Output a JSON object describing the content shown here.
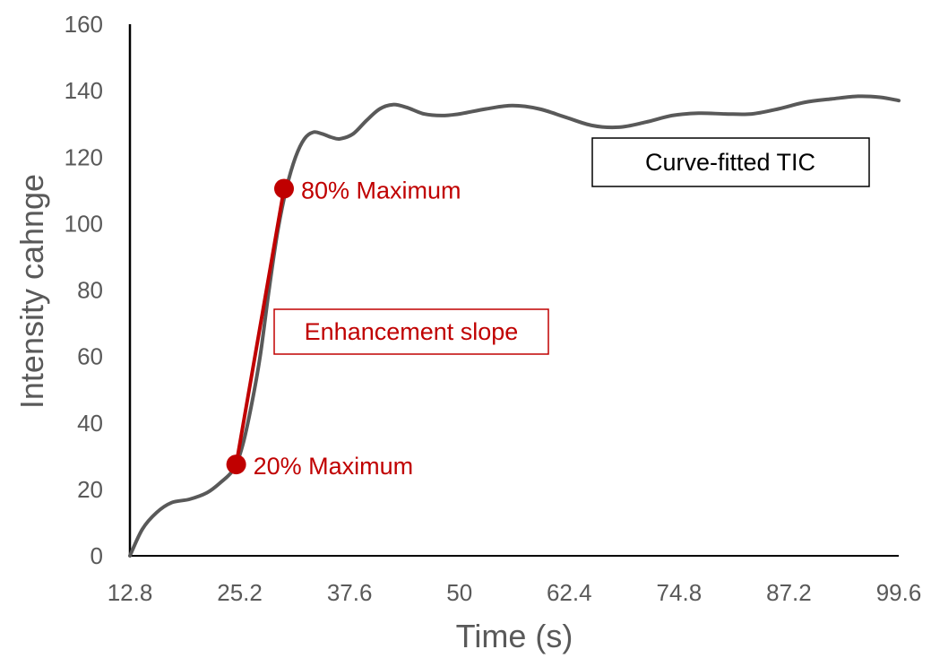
{
  "chart_data": {
    "type": "line",
    "xlabel": "Time (s)",
    "ylabel": "Intensity cahnge",
    "ylim": [
      0,
      160
    ],
    "yticks": [
      0,
      20,
      40,
      60,
      80,
      100,
      120,
      140,
      160
    ],
    "xlim": [
      12.8,
      99.6
    ],
    "xticks": [
      "12.8",
      "25.2",
      "37.6",
      "50",
      "62.4",
      "74.8",
      "87.2",
      "99.6"
    ],
    "grid": false,
    "series": [
      {
        "name": "Curve-fitted TIC",
        "color": "#595959",
        "x": [
          12.8,
          14.2,
          15.8,
          17.5,
          19.5,
          21.5,
          23.0,
          24.5,
          25.5,
          26.5,
          27.5,
          28.5,
          29.5,
          30.5,
          31.5,
          32.5,
          33.5,
          34.5,
          35.5,
          36.5,
          38.0,
          39.5,
          41.0,
          42.5,
          44.0,
          46.0,
          48.0,
          50.0,
          53.0,
          56.0,
          59.0,
          62.0,
          65.0,
          68.0,
          71.0,
          74.0,
          77.0,
          80.0,
          83.0,
          86.0,
          89.0,
          92.0,
          95.0,
          97.5,
          99.6
        ],
        "y": [
          0,
          8,
          13,
          16,
          17,
          19,
          22,
          26,
          33,
          45,
          60,
          80,
          98,
          111,
          120,
          125.5,
          127.5,
          127,
          126,
          125.5,
          127,
          131,
          134.5,
          135.8,
          135,
          133,
          132.5,
          133,
          134.5,
          135.5,
          134.5,
          132,
          129.5,
          129,
          130.5,
          132.5,
          133.2,
          133,
          133,
          134.5,
          136.5,
          137.5,
          138.3,
          138,
          137
        ]
      }
    ],
    "annotations": {
      "point_20": {
        "label": "20% Maximum",
        "x": 24.8,
        "y": 27.5
      },
      "point_80": {
        "label": "80% Maximum",
        "x": 30.2,
        "y": 110.5
      },
      "slope_label": "Enhancement slope",
      "legend_label": "Curve-fitted TIC",
      "annotation_color": "#c00000"
    }
  }
}
